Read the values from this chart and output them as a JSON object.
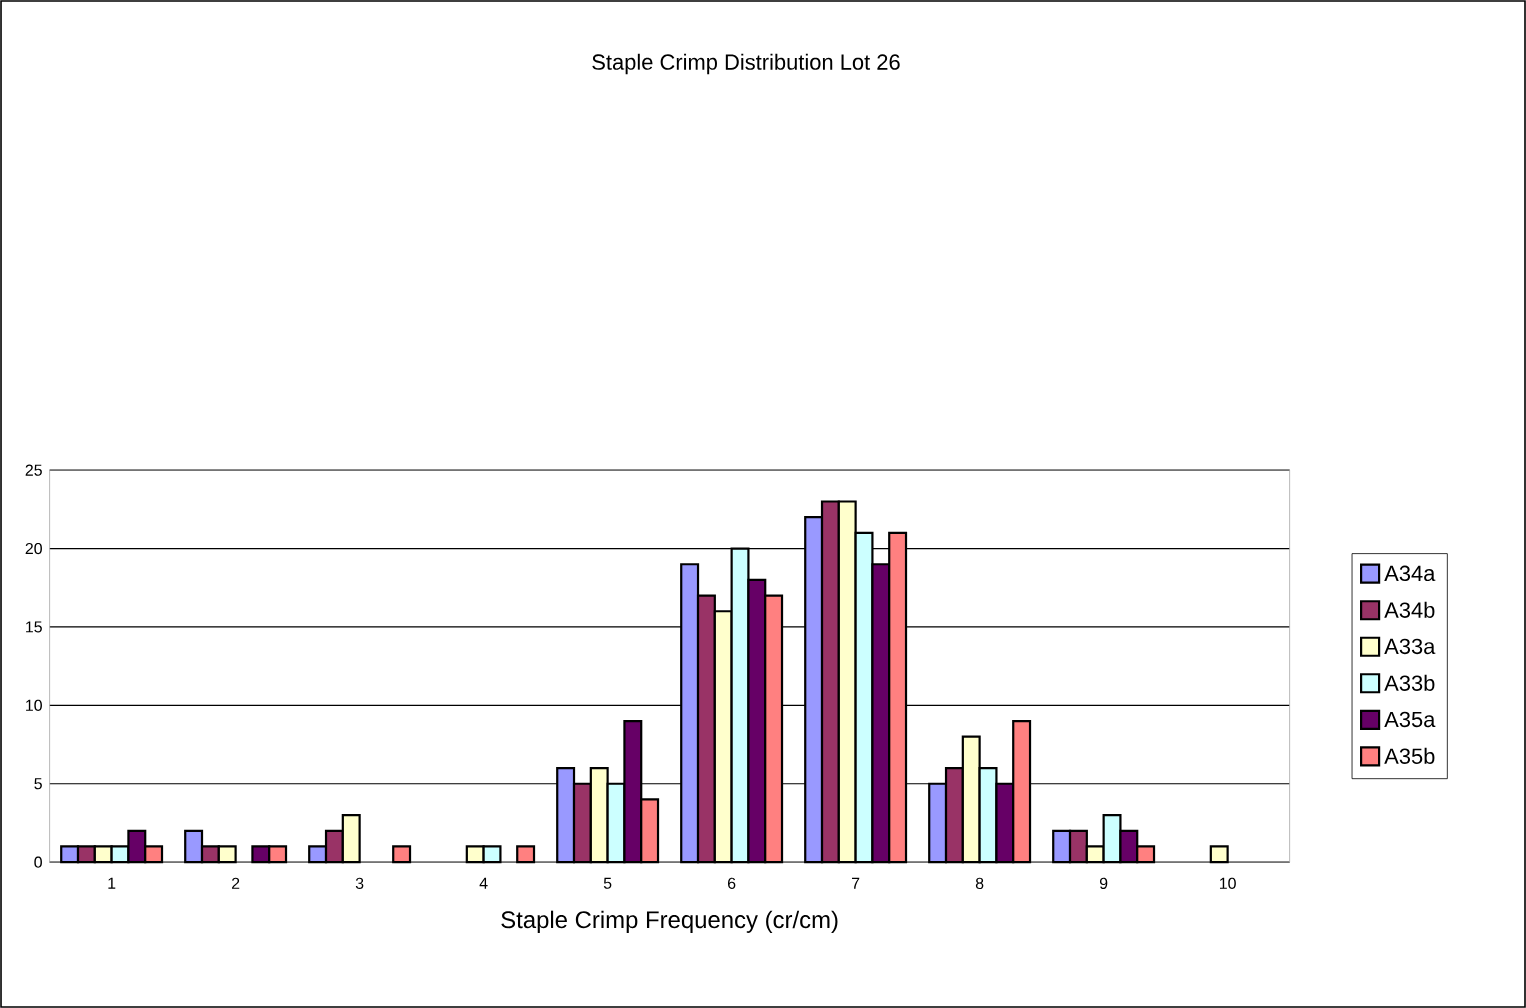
{
  "chart_data": {
    "type": "bar",
    "title": "Staple Crimp Distribution Lot 26",
    "xlabel": "Staple Crimp Frequency (cr/cm)",
    "categories": [
      "1",
      "2",
      "3",
      "4",
      "5",
      "6",
      "7",
      "8",
      "9",
      "10"
    ],
    "series": [
      {
        "name": "A34a",
        "color": "#9999ff",
        "values": [
          1,
          2,
          1,
          0,
          6,
          19,
          22,
          5,
          2,
          0
        ]
      },
      {
        "name": "A34b",
        "color": "#993366",
        "values": [
          1,
          1,
          2,
          0,
          5,
          17,
          23,
          6,
          2,
          0
        ]
      },
      {
        "name": "A33a",
        "color": "#ffffcc",
        "values": [
          1,
          1,
          3,
          1,
          6,
          16,
          23,
          8,
          1,
          1
        ]
      },
      {
        "name": "A33b",
        "color": "#ccffff",
        "values": [
          1,
          0,
          0,
          1,
          5,
          20,
          21,
          6,
          3,
          0
        ]
      },
      {
        "name": "A35a",
        "color": "#660066",
        "values": [
          2,
          1,
          0,
          0,
          9,
          18,
          19,
          5,
          2,
          0
        ]
      },
      {
        "name": "A35b",
        "color": "#ff8080",
        "values": [
          1,
          1,
          1,
          1,
          4,
          17,
          21,
          9,
          1,
          0
        ]
      }
    ],
    "ylim": [
      0,
      25
    ],
    "yticks": [
      0,
      5,
      10,
      15,
      20,
      25
    ],
    "grid": "y",
    "legend": "right"
  }
}
